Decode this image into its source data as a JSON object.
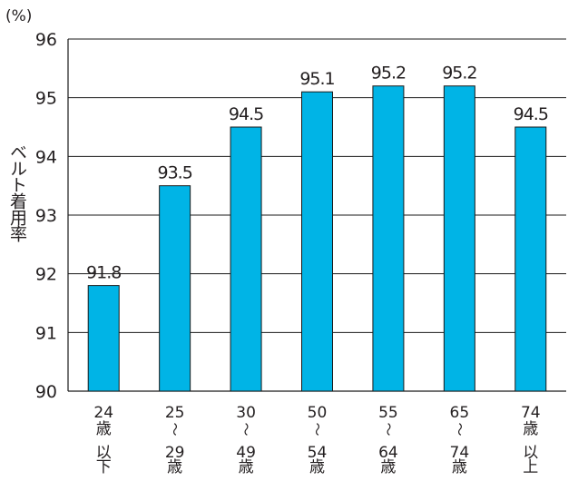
{
  "chart_data": {
    "type": "bar",
    "unit_label": "(%)",
    "ylabel": "ベルト着用率",
    "xlabel": "",
    "title": "",
    "ylim": [
      90,
      96
    ],
    "yticks": [
      "90",
      "91",
      "92",
      "93",
      "94",
      "95",
      "96"
    ],
    "grid": true,
    "categories": [
      [
        "24",
        "歳",
        "以",
        "下"
      ],
      [
        "25",
        "〜",
        "29",
        "歳"
      ],
      [
        "30",
        "〜",
        "49",
        "歳"
      ],
      [
        "50",
        "〜",
        "54",
        "歳"
      ],
      [
        "55",
        "〜",
        "64",
        "歳"
      ],
      [
        "65",
        "〜",
        "74",
        "歳"
      ],
      [
        "74",
        "歳",
        "以",
        "上"
      ]
    ],
    "values": [
      91.8,
      93.5,
      94.5,
      95.1,
      95.2,
      95.2,
      94.5
    ],
    "value_labels": [
      "91.8",
      "93.5",
      "94.5",
      "95.1",
      "95.2",
      "95.2",
      "94.5"
    ],
    "colors": {
      "bar": "#00b4e6",
      "bar_edge": "#1a1a1a",
      "axis": "#1a1a1a",
      "grid": "#1a1a1a",
      "text": "#231f20"
    }
  }
}
